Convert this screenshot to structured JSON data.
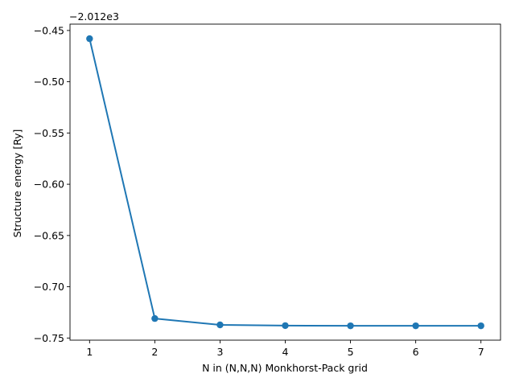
{
  "chart_data": {
    "type": "line",
    "title": "",
    "xlabel": "N in (N,N,N) Monkhorst-Pack grid",
    "ylabel": "Structure energy [Ry]",
    "y_offset_label": "−2.012e3",
    "x": [
      1,
      2,
      3,
      4,
      5,
      6,
      7
    ],
    "series": [
      {
        "values": [
          -0.458,
          -0.731,
          -0.7372,
          -0.7379,
          -0.7381,
          -0.7381,
          -0.7381
        ],
        "color": "#1f77b4",
        "marker": "circle"
      }
    ],
    "xlim": [
      0.7,
      7.3
    ],
    "ylim": [
      -0.7521,
      -0.4438
    ],
    "x_ticks": [
      1,
      2,
      3,
      4,
      5,
      6,
      7
    ],
    "x_tick_labels": [
      "1",
      "2",
      "3",
      "4",
      "5",
      "6",
      "7"
    ],
    "y_ticks": [
      -0.45,
      -0.5,
      -0.55,
      -0.6,
      -0.65,
      -0.7,
      -0.75
    ],
    "y_tick_labels": [
      "−0.45",
      "−0.50",
      "−0.55",
      "−0.60",
      "−0.65",
      "−0.70",
      "−0.75"
    ],
    "grid": false,
    "legend": "none"
  }
}
